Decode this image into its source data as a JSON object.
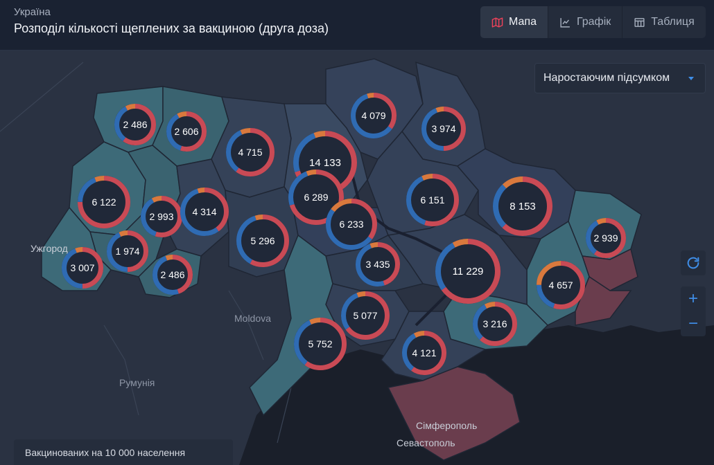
{
  "header": {
    "country": "Україна",
    "title": "Розподіл кількості щеплених за вакциною (друга доза)"
  },
  "tabs": [
    {
      "label": "Мапа",
      "icon": "map-icon",
      "active": true
    },
    {
      "label": "Графік",
      "icon": "line-chart-icon",
      "active": false
    },
    {
      "label": "Таблиця",
      "icon": "table-icon",
      "active": false
    }
  ],
  "mode_select": {
    "value": "Наростаючим підсумком"
  },
  "legend": {
    "text": "Вакцинованих на 10 000 населення"
  },
  "colors": {
    "ring_red": "#c94a55",
    "ring_blue": "#2f6bb3",
    "ring_orange": "#d9793d",
    "badge_fill": "#202838",
    "controls_accent": "#3f8ee8"
  },
  "map_labels": {
    "uzhhorod": "Ужгород",
    "moldova": "Moldova",
    "romania": "Румунія",
    "simferopol": "Сімферополь",
    "sevastopol": "Севастополь"
  },
  "regions": [
    {
      "id": "volyn",
      "value": "2 486",
      "shares": [
        0.6,
        0.32,
        0.08
      ]
    },
    {
      "id": "rivne",
      "value": "2 606",
      "shares": [
        0.55,
        0.37,
        0.08
      ]
    },
    {
      "id": "zhytomyr",
      "value": "4 715",
      "shares": [
        0.6,
        0.33,
        0.07
      ]
    },
    {
      "id": "kyiv-city",
      "value": "14 133",
      "shares": [
        0.7,
        0.24,
        0.06
      ]
    },
    {
      "id": "chernihiv",
      "value": "4 079",
      "shares": [
        0.35,
        0.6,
        0.05
      ]
    },
    {
      "id": "sumy",
      "value": "3 974",
      "shares": [
        0.5,
        0.44,
        0.06
      ]
    },
    {
      "id": "lviv",
      "value": "6 122",
      "shares": [
        0.75,
        0.19,
        0.06
      ]
    },
    {
      "id": "ternopil",
      "value": "2 993",
      "shares": [
        0.55,
        0.37,
        0.08
      ]
    },
    {
      "id": "khmelnytskyi",
      "value": "4 314",
      "shares": [
        0.4,
        0.55,
        0.05
      ]
    },
    {
      "id": "kyiv-oblast",
      "value": "6 289",
      "shares": [
        0.7,
        0.24,
        0.06
      ]
    },
    {
      "id": "cherkasy",
      "value": "6 233",
      "shares": [
        0.35,
        0.5,
        0.15
      ]
    },
    {
      "id": "poltava",
      "value": "6 151",
      "shares": [
        0.55,
        0.38,
        0.07
      ]
    },
    {
      "id": "kharkiv",
      "value": "8 153",
      "shares": [
        0.62,
        0.26,
        0.12
      ]
    },
    {
      "id": "ivano-frankivsk",
      "value": "1 974",
      "shares": [
        0.5,
        0.43,
        0.07
      ]
    },
    {
      "id": "vinnytsia",
      "value": "5 296",
      "shares": [
        0.58,
        0.37,
        0.05
      ]
    },
    {
      "id": "zakarpattia",
      "value": "3 007",
      "shares": [
        0.5,
        0.44,
        0.06
      ]
    },
    {
      "id": "chernivtsi",
      "value": "2 486",
      "shares": [
        0.45,
        0.49,
        0.06
      ]
    },
    {
      "id": "kirovohrad",
      "value": "3 435",
      "shares": [
        0.45,
        0.49,
        0.06
      ]
    },
    {
      "id": "dnipro",
      "value": "11 229",
      "shares": [
        0.65,
        0.27,
        0.08
      ]
    },
    {
      "id": "luhansk",
      "value": "2 939",
      "shares": [
        0.6,
        0.32,
        0.08
      ]
    },
    {
      "id": "donetsk",
      "value": "4 657",
      "shares": [
        0.55,
        0.2,
        0.25
      ]
    },
    {
      "id": "mykolaiv",
      "value": "5 077",
      "shares": [
        0.65,
        0.29,
        0.06
      ]
    },
    {
      "id": "zaporizhzhia",
      "value": "3 216",
      "shares": [
        0.62,
        0.3,
        0.08
      ]
    },
    {
      "id": "odesa",
      "value": "5 752",
      "shares": [
        0.6,
        0.33,
        0.07
      ]
    },
    {
      "id": "kherson",
      "value": "4 121",
      "shares": [
        0.6,
        0.32,
        0.08
      ]
    }
  ]
}
